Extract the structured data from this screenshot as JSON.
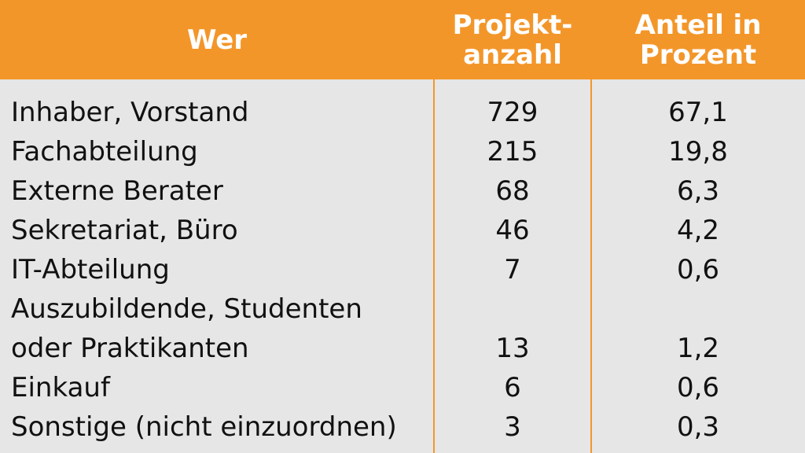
{
  "header": {
    "col_wer": "Wer",
    "col_anzahl": "Projekt-\nanzahl",
    "col_anteil": "Anteil in\nProzent"
  },
  "rows": [
    {
      "wer": "Inhaber, Vorstand",
      "anzahl": "729",
      "anteil": "67,1"
    },
    {
      "wer": "Fachabteilung",
      "anzahl": "215",
      "anteil": "19,8"
    },
    {
      "wer": "Externe Berater",
      "anzahl": "68",
      "anteil": "6,3"
    },
    {
      "wer": "Sekretariat, Büro",
      "anzahl": "46",
      "anteil": "4,2"
    },
    {
      "wer": "IT-Abteilung",
      "anzahl": "7",
      "anteil": "0,6"
    },
    {
      "wer": "Auszubildende, Studenten\noder Praktikanten",
      "anzahl": "13",
      "anteil": "1,2"
    },
    {
      "wer": "Einkauf",
      "anzahl": "6",
      "anteil": "0,6"
    },
    {
      "wer": "Sonstige (nicht einzuordnen)",
      "anzahl": "3",
      "anteil": "0,3"
    }
  ],
  "colors": {
    "header_bg": "#f3962a",
    "body_bg": "#e6e6e6",
    "header_text": "#ffffff"
  }
}
